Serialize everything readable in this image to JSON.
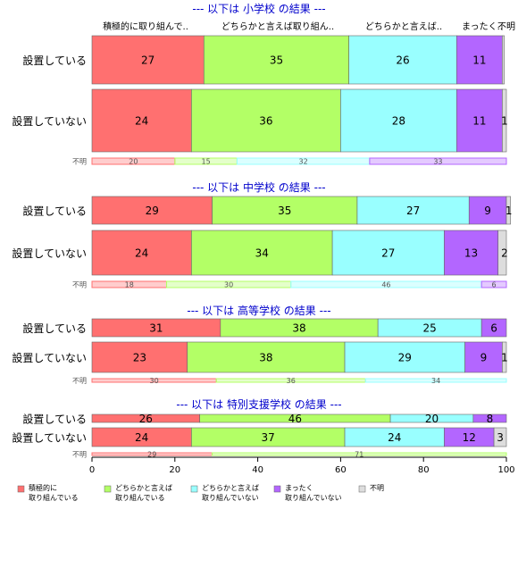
{
  "chart_data": {
    "type": "bar",
    "orientation": "horizontal",
    "stacked": "percent",
    "xlim": [
      0,
      100
    ],
    "xticks": [
      0,
      20,
      40,
      60,
      80,
      100
    ],
    "categories": [
      "積極的に取り組んで..",
      "どちらかと言えば取り組ん..",
      "どちらかと言えば..",
      "まったく..",
      "不明"
    ],
    "colors": [
      "#ff7070",
      "#b3ff66",
      "#99ffff",
      "#b366ff",
      "#dddddd"
    ],
    "legend": {
      "position": "bottom",
      "items": [
        {
          "label": [
            "積極的に",
            "取り組んでいる"
          ],
          "color": "#ff7070"
        },
        {
          "label": [
            "どちらかと言えば",
            "取り組んでいる"
          ],
          "color": "#b3ff66"
        },
        {
          "label": [
            "どちらかと言えば",
            "取り組んでいない"
          ],
          "color": "#99ffff"
        },
        {
          "label": [
            "まったく",
            "取り組んでいない"
          ],
          "color": "#b366ff"
        },
        {
          "label": [
            "不明"
          ],
          "color": "#dddddd"
        }
      ]
    },
    "groups": [
      {
        "title": "--- 以下は 小学校 の結果 ---",
        "rows": [
          {
            "label": "設置している",
            "values": [
              27,
              35,
              26,
              11,
              0.5
            ],
            "labels": [
              "27",
              "35",
              "26",
              "11",
              ""
            ]
          },
          {
            "label": "設置していない",
            "values": [
              24,
              36,
              28,
              11,
              1
            ],
            "labels": [
              "24",
              "36",
              "28",
              "11",
              "1"
            ]
          }
        ],
        "unknown": {
          "label": "不明",
          "values": [
            20,
            15,
            32,
            33,
            0
          ],
          "labels": [
            "20",
            "15",
            "32",
            "33",
            ""
          ]
        }
      },
      {
        "title": "--- 以下は 中学校 の結果 ---",
        "rows": [
          {
            "label": "設置している",
            "values": [
              29,
              35,
              27,
              9,
              1
            ],
            "labels": [
              "29",
              "35",
              "27",
              "9",
              "1"
            ]
          },
          {
            "label": "設置していない",
            "values": [
              24,
              34,
              27,
              13,
              2
            ],
            "labels": [
              "24",
              "34",
              "27",
              "13",
              "2"
            ]
          }
        ],
        "unknown": {
          "label": "不明",
          "values": [
            18,
            30,
            46,
            6,
            0
          ],
          "labels": [
            "18",
            "30",
            "46",
            "6",
            ""
          ]
        }
      },
      {
        "title": "--- 以下は 高等学校 の結果 ---",
        "rows": [
          {
            "label": "設置している",
            "values": [
              31,
              38,
              25,
              6,
              0
            ],
            "labels": [
              "31",
              "38",
              "25",
              "6",
              ""
            ]
          },
          {
            "label": "設置していない",
            "values": [
              23,
              38,
              29,
              9,
              1
            ],
            "labels": [
              "23",
              "38",
              "29",
              "9",
              "1"
            ]
          }
        ],
        "unknown": {
          "label": "不明",
          "values": [
            30,
            36,
            34,
            0,
            0
          ],
          "labels": [
            "30",
            "36",
            "34",
            "",
            ""
          ]
        }
      },
      {
        "title": "--- 以下は 特別支援学校 の結果 ---",
        "rows": [
          {
            "label": "設置している",
            "values": [
              26,
              46,
              20,
              8,
              0
            ],
            "labels": [
              "26",
              "46",
              "20",
              "8",
              ""
            ]
          },
          {
            "label": "設置していない",
            "values": [
              24,
              37,
              24,
              12,
              3
            ],
            "labels": [
              "24",
              "37",
              "24",
              "12",
              "3"
            ]
          }
        ],
        "unknown": {
          "label": "不明",
          "values": [
            29,
            71,
            0,
            0,
            0
          ],
          "labels": [
            "29",
            "71",
            "",
            "",
            ""
          ]
        }
      }
    ]
  }
}
